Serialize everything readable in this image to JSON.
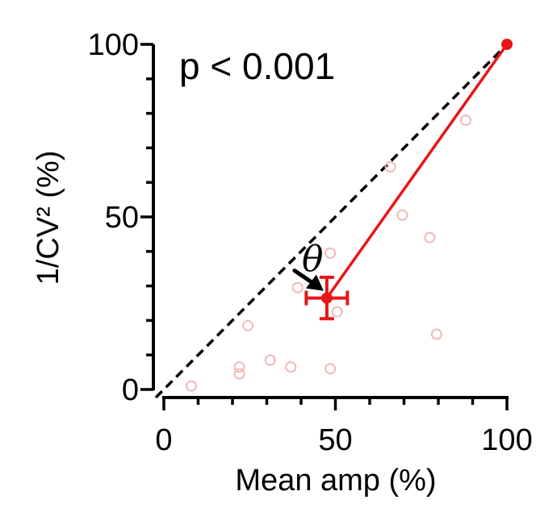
{
  "chart_data": {
    "type": "scatter",
    "title": "",
    "xlabel": "Mean amp (%)",
    "ylabel": "1/CV² (%)",
    "xlim": [
      0,
      100
    ],
    "ylim": [
      0,
      100
    ],
    "x_ticks": [
      0,
      50,
      100
    ],
    "y_ticks": [
      0,
      50,
      100
    ],
    "x_tick_labels": [
      "0",
      "50",
      "100"
    ],
    "y_tick_labels": [
      "0",
      "50",
      "100"
    ],
    "grid": false,
    "annotation": "p < 0.001",
    "angle_label": "θ",
    "identity_line": {
      "from": [
        0,
        0
      ],
      "to": [
        100,
        100
      ],
      "style": "dashed",
      "color": "#000000"
    },
    "individual_points": {
      "color": "#f2b8b8",
      "points": [
        {
          "x": 8,
          "y": 1
        },
        {
          "x": 22,
          "y": 6.5
        },
        {
          "x": 22,
          "y": 4.5
        },
        {
          "x": 24.5,
          "y": 18.5
        },
        {
          "x": 31,
          "y": 8.5
        },
        {
          "x": 37,
          "y": 6.5
        },
        {
          "x": 39,
          "y": 29.5
        },
        {
          "x": 48.5,
          "y": 6
        },
        {
          "x": 48.5,
          "y": 39.5
        },
        {
          "x": 50.5,
          "y": 22.5
        },
        {
          "x": 66,
          "y": 64.5
        },
        {
          "x": 69.5,
          "y": 50.5
        },
        {
          "x": 77.5,
          "y": 44
        },
        {
          "x": 79.5,
          "y": 16
        },
        {
          "x": 88,
          "y": 78
        }
      ]
    },
    "mean_point": {
      "x": 47.5,
      "y": 26.5,
      "x_err": 6,
      "y_err": 6,
      "color": "#e8151b"
    },
    "reference_point": {
      "x": 100,
      "y": 100,
      "color": "#e8151b"
    }
  }
}
